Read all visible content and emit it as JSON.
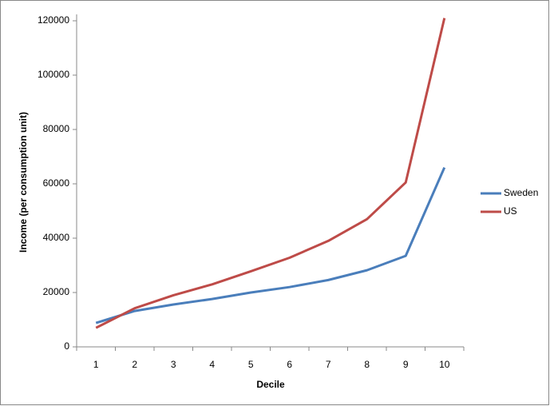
{
  "chart_data": {
    "type": "line",
    "x_label": "Decile",
    "y_label": "Income (per consumption unit)",
    "categories": [
      "1",
      "2",
      "3",
      "4",
      "5",
      "6",
      "7",
      "8",
      "9",
      "10"
    ],
    "series": [
      {
        "name": "Sweden",
        "color": "#4a7ebb",
        "values": [
          8800,
          13200,
          15600,
          17600,
          20000,
          22000,
          24600,
          28200,
          33500,
          66000
        ]
      },
      {
        "name": "US",
        "color": "#be4b48",
        "values": [
          7000,
          14200,
          19000,
          23000,
          27800,
          32800,
          39000,
          47000,
          60500,
          121000
        ]
      }
    ],
    "ylim": [
      0,
      120000
    ],
    "yticks": [
      0,
      20000,
      40000,
      60000,
      80000,
      100000,
      120000
    ],
    "legend": "right"
  }
}
